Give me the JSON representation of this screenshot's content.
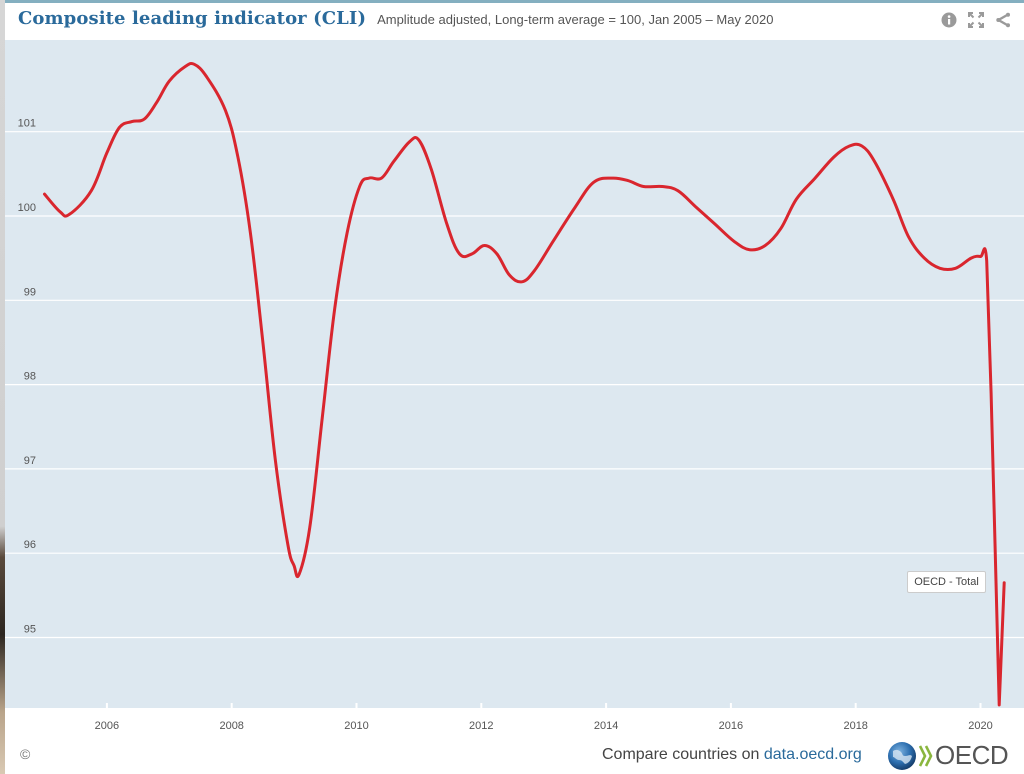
{
  "header": {
    "title": "Composite leading indicator (CLI)",
    "subtitle": "Amplitude adjusted, Long-term average = 100, Jan 2005 – May 2020",
    "icons": [
      "info-icon",
      "fullscreen-icon",
      "share-icon"
    ]
  },
  "footer": {
    "copyright": "©",
    "compare_prefix": "Compare countries on ",
    "compare_link": "data.oecd.org",
    "logo_text": "OECD"
  },
  "colors": {
    "title": "#2a6a9b",
    "series": "#d9262e",
    "plot_bg": "#dde8f0",
    "grid": "#ffffff"
  },
  "chart_data": {
    "type": "line",
    "title": "Composite leading indicator (CLI)",
    "subtitle": "Amplitude adjusted, Long-term average = 100, Jan 2005 – May 2020",
    "xlabel": "",
    "ylabel": "",
    "xlim": [
      2004.85,
      2020.65
    ],
    "ylim": [
      94.15,
      102.0
    ],
    "x_ticks": [
      2006,
      2008,
      2010,
      2012,
      2014,
      2016,
      2018,
      2020
    ],
    "x_tick_labels": [
      "2006",
      "2008",
      "2010",
      "2012",
      "2014",
      "2016",
      "2018",
      "2020"
    ],
    "y_ticks": [
      95,
      96,
      97,
      98,
      99,
      100,
      101
    ],
    "y_tick_labels": [
      "95",
      "96",
      "97",
      "98",
      "99",
      "100",
      "101"
    ],
    "grid": "horizontal",
    "legend": "none",
    "annotation": {
      "text": "OECD - Total",
      "x": 2020.38,
      "y": 95.65,
      "placement": "left-of-last-point"
    },
    "series": [
      {
        "name": "OECD - Total",
        "x": [
          2005.0,
          2005.25,
          2005.4,
          2005.75,
          2006.0,
          2006.2,
          2006.4,
          2006.6,
          2006.8,
          2007.0,
          2007.25,
          2007.4,
          2007.6,
          2007.9,
          2008.1,
          2008.3,
          2008.5,
          2008.7,
          2008.9,
          2009.0,
          2009.08,
          2009.25,
          2009.45,
          2009.65,
          2009.85,
          2010.05,
          2010.2,
          2010.4,
          2010.6,
          2010.85,
          2011.0,
          2011.2,
          2011.45,
          2011.65,
          2011.85,
          2012.05,
          2012.25,
          2012.45,
          2012.65,
          2012.85,
          2013.15,
          2013.5,
          2013.8,
          2014.1,
          2014.35,
          2014.6,
          2014.9,
          2015.15,
          2015.45,
          2015.75,
          2016.05,
          2016.3,
          2016.55,
          2016.8,
          2017.05,
          2017.35,
          2017.65,
          2017.9,
          2018.1,
          2018.3,
          2018.6,
          2018.85,
          2019.1,
          2019.35,
          2019.6,
          2019.85,
          2020.0,
          2020.1,
          2020.17,
          2020.3,
          2020.38
        ],
        "values": [
          100.26,
          100.05,
          100.02,
          100.3,
          100.75,
          101.05,
          101.12,
          101.15,
          101.35,
          101.6,
          101.77,
          101.8,
          101.65,
          101.25,
          100.7,
          99.8,
          98.5,
          97.1,
          96.1,
          95.85,
          95.75,
          96.3,
          97.6,
          98.9,
          99.8,
          100.35,
          100.45,
          100.45,
          100.65,
          100.88,
          100.9,
          100.55,
          99.9,
          99.55,
          99.55,
          99.65,
          99.55,
          99.3,
          99.22,
          99.35,
          99.7,
          100.1,
          100.4,
          100.45,
          100.42,
          100.35,
          100.35,
          100.3,
          100.1,
          99.9,
          99.7,
          99.6,
          99.65,
          99.85,
          100.2,
          100.45,
          100.7,
          100.83,
          100.83,
          100.65,
          100.2,
          99.75,
          99.5,
          99.38,
          99.38,
          99.5,
          99.52,
          99.47,
          97.9,
          94.2,
          95.65
        ]
      }
    ]
  }
}
